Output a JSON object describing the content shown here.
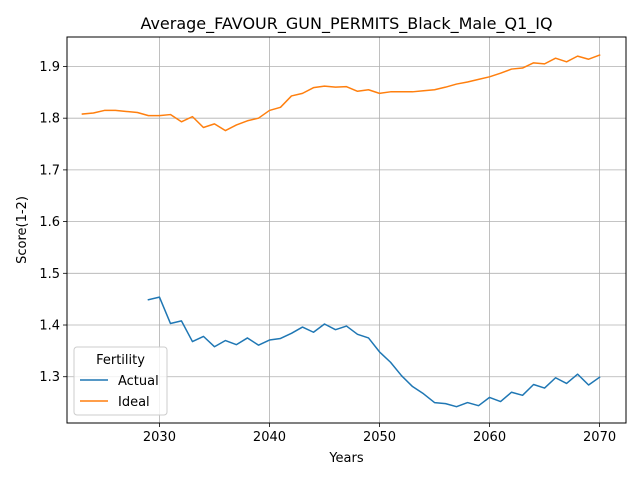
{
  "chart_data": {
    "type": "line",
    "title": "Average_FAVOUR_GUN_PERMITS_Black_Male_Q1_IQ",
    "xlabel": "Years",
    "ylabel": "Score(1-2)",
    "xlim": [
      2021.6,
      2072.4
    ],
    "ylim": [
      1.2105,
      1.957
    ],
    "xticks": [
      2030,
      2040,
      2050,
      2060,
      2070
    ],
    "yticks": [
      1.3,
      1.4,
      1.5,
      1.6,
      1.7,
      1.8,
      1.9
    ],
    "grid": true,
    "legend": {
      "title": "Fertility",
      "placement": "lower-left"
    },
    "series": [
      {
        "name": "Actual",
        "color": "#1f77b4",
        "x": [
          2029,
          2030,
          2031,
          2032,
          2033,
          2034,
          2035,
          2036,
          2037,
          2038,
          2039,
          2040,
          2041,
          2042,
          2043,
          2044,
          2045,
          2046,
          2047,
          2048,
          2049,
          2050,
          2051,
          2052,
          2053,
          2054,
          2055,
          2056,
          2057,
          2058,
          2059,
          2060,
          2061,
          2062,
          2063,
          2064,
          2065,
          2066,
          2067,
          2068,
          2069,
          2070
        ],
        "y": [
          1.449,
          1.454,
          1.403,
          1.408,
          1.368,
          1.378,
          1.358,
          1.37,
          1.362,
          1.375,
          1.361,
          1.371,
          1.374,
          1.384,
          1.396,
          1.386,
          1.402,
          1.391,
          1.398,
          1.382,
          1.375,
          1.348,
          1.328,
          1.302,
          1.281,
          1.267,
          1.25,
          1.248,
          1.242,
          1.25,
          1.244,
          1.26,
          1.252,
          1.27,
          1.264,
          1.285,
          1.278,
          1.298,
          1.287,
          1.305,
          1.284,
          1.299
        ]
      },
      {
        "name": "Ideal",
        "color": "#ff7f0e",
        "x": [
          2023,
          2024,
          2025,
          2026,
          2027,
          2028,
          2029,
          2030,
          2031,
          2032,
          2033,
          2034,
          2035,
          2036,
          2037,
          2038,
          2039,
          2040,
          2041,
          2042,
          2043,
          2044,
          2045,
          2046,
          2047,
          2048,
          2049,
          2050,
          2051,
          2052,
          2053,
          2054,
          2055,
          2056,
          2057,
          2058,
          2059,
          2060,
          2061,
          2062,
          2063,
          2064,
          2065,
          2066,
          2067,
          2068,
          2069,
          2070
        ],
        "y": [
          1.808,
          1.81,
          1.815,
          1.815,
          1.813,
          1.811,
          1.805,
          1.805,
          1.807,
          1.793,
          1.803,
          1.782,
          1.789,
          1.776,
          1.787,
          1.795,
          1.8,
          1.815,
          1.821,
          1.843,
          1.848,
          1.859,
          1.862,
          1.86,
          1.861,
          1.852,
          1.855,
          1.848,
          1.851,
          1.851,
          1.851,
          1.853,
          1.855,
          1.86,
          1.866,
          1.87,
          1.875,
          1.88,
          1.887,
          1.895,
          1.897,
          1.907,
          1.905,
          1.916,
          1.909,
          1.92,
          1.914,
          1.922
        ]
      }
    ]
  }
}
